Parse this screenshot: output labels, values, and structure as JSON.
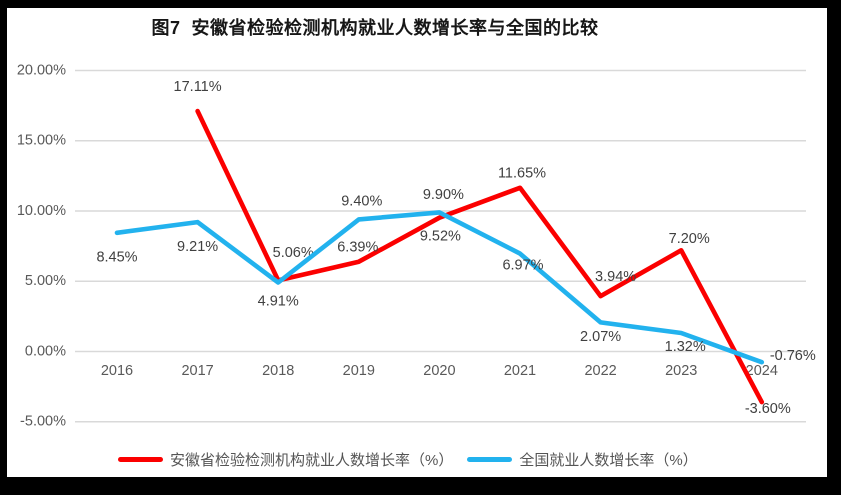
{
  "title": "图7  安徽省检验检测机构就业人数增长率与全国的比较",
  "chart_data": {
    "type": "line",
    "categories": [
      "2016",
      "2017",
      "2018",
      "2019",
      "2020",
      "2021",
      "2022",
      "2023",
      "2024"
    ],
    "series": [
      {
        "id": "anhui-growth-rate",
        "name": "安徽省检验检测机构就业人数增长率（%）",
        "color": "#FB0000",
        "values": [
          null,
          17.11,
          5.06,
          6.39,
          9.52,
          11.65,
          3.94,
          7.2,
          -3.6
        ],
        "labels": [
          "",
          "17.11%",
          "5.06%",
          "6.39%",
          "9.52%",
          "11.65%",
          "3.94%",
          "7.20%",
          "-3.60%"
        ]
      },
      {
        "id": "national-growth-rate",
        "name": "全国就业人数增长率（%）",
        "color": "#22B2EE",
        "values": [
          8.45,
          9.21,
          4.91,
          9.4,
          9.9,
          6.97,
          2.07,
          1.32,
          -0.76
        ],
        "labels": [
          "8.45%",
          "9.21%",
          "4.91%",
          "9.40%",
          "9.90%",
          "6.97%",
          "2.07%",
          "1.32%",
          "-0.76%"
        ]
      }
    ],
    "y_ticks": [
      "20.00%",
      "15.00%",
      "10.00%",
      "5.00%",
      "0.00%",
      "-5.00%"
    ],
    "y_tick_values": [
      20,
      15,
      10,
      5,
      0,
      -5
    ],
    "ylim": [
      -5,
      20
    ],
    "grid": true,
    "grid_color": "#D9D9D9",
    "axis_label_color": "#595959",
    "data_label_color": "#404040",
    "legend_position": "bottom",
    "xlabel": "",
    "ylabel": ""
  }
}
